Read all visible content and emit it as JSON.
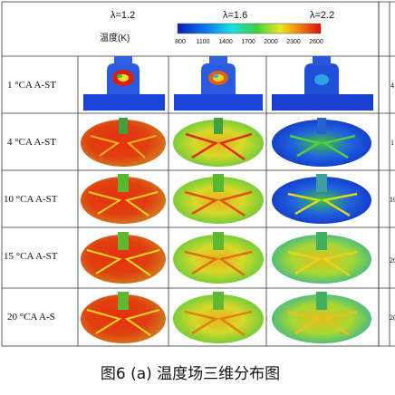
{
  "figure": {
    "header": {
      "lambda_labels": [
        "λ=1.2",
        "λ=1.6",
        "λ=2.2"
      ],
      "colorbar_title": "温度(K)",
      "colorbar_ticks": [
        "800",
        "1100",
        "1400",
        "1700",
        "2000",
        "2300",
        "2600"
      ],
      "colorbar_colors": [
        "#0a1db8",
        "#0a7cf0",
        "#18e0e0",
        "#40d040",
        "#e8e820",
        "#f07810",
        "#d81010"
      ]
    },
    "rows": [
      {
        "label": "1 °CA A-ST"
      },
      {
        "label": "4 °CA A-ST"
      },
      {
        "label": "10 °CA A-ST"
      },
      {
        "label": "15 °CA A-ST"
      },
      {
        "label": "20 °CA A-S"
      }
    ],
    "right_partial_labels": [
      "",
      "4",
      "1",
      "10",
      "20",
      "2("
    ],
    "caption": "图6 (a)  温度场三维分布图"
  }
}
